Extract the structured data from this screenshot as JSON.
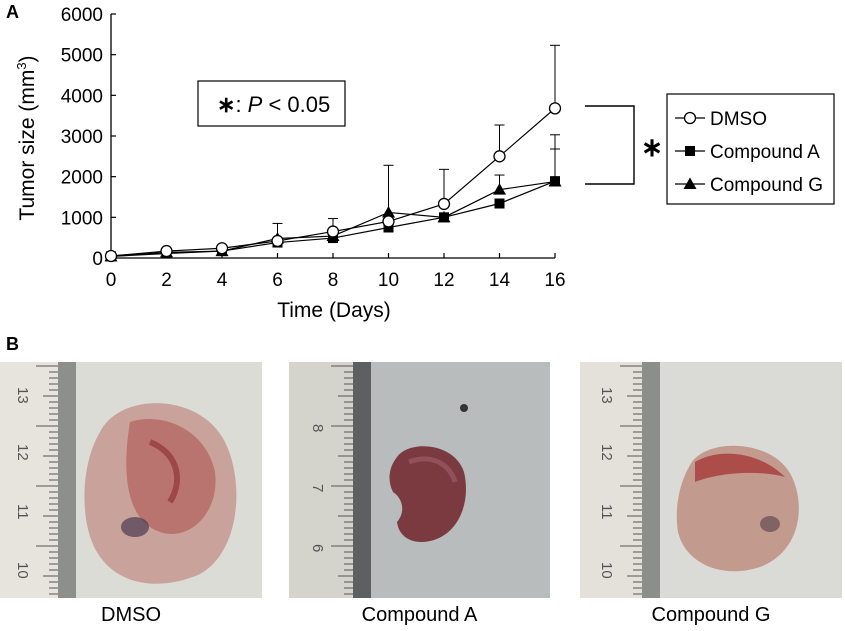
{
  "panel_a_label": "A",
  "panel_b_label": "B",
  "chart_data": {
    "type": "line",
    "ylabel": "Tumor size (mm",
    "ylabel_sup": "3",
    "ylabel_close": ")",
    "xlabel": "Time (Days)",
    "x": [
      0,
      2,
      4,
      6,
      8,
      10,
      12,
      14,
      16
    ],
    "xticks": [
      "0",
      "2",
      "4",
      "6",
      "8",
      "10",
      "12",
      "14",
      "16"
    ],
    "yticks": [
      "0",
      "1000",
      "2000",
      "3000",
      "4000",
      "5000",
      "6000"
    ],
    "xlim": [
      0,
      16
    ],
    "ylim": [
      0,
      6000
    ],
    "grid": false,
    "legend_position": "right",
    "series": [
      {
        "name": "DMSO",
        "marker": "open-circle",
        "values": [
          50,
          170,
          240,
          420,
          650,
          900,
          1330,
          2500,
          3680
        ],
        "err": [
          0,
          0,
          0,
          430,
          320,
          1380,
          850,
          770,
          1550
        ]
      },
      {
        "name": "Compound A",
        "marker": "filled-square",
        "values": [
          40,
          110,
          170,
          380,
          490,
          750,
          1000,
          1340,
          1890
        ],
        "err": [
          0,
          0,
          0,
          0,
          0,
          0,
          0,
          0,
          1140
        ]
      },
      {
        "name": "Compound G",
        "marker": "filled-triangle",
        "values": [
          40,
          140,
          170,
          480,
          540,
          1120,
          1000,
          1680,
          1880
        ],
        "err": [
          0,
          0,
          0,
          0,
          0,
          0,
          0,
          360,
          800
        ]
      }
    ],
    "annotation_star": "∗",
    "annotation_text": ": ",
    "annotation_p": "P",
    "annotation_rest": " < 0.05",
    "bracket_star": "∗"
  },
  "photos": [
    {
      "caption": "DMSO",
      "ruler_labels": [
        "13",
        "12",
        "11",
        "10"
      ]
    },
    {
      "caption": "Compound A",
      "ruler_labels": [
        "8",
        "7",
        "6"
      ]
    },
    {
      "caption": "Compound G",
      "ruler_labels": [
        "13",
        "12",
        "11",
        "10"
      ]
    }
  ]
}
